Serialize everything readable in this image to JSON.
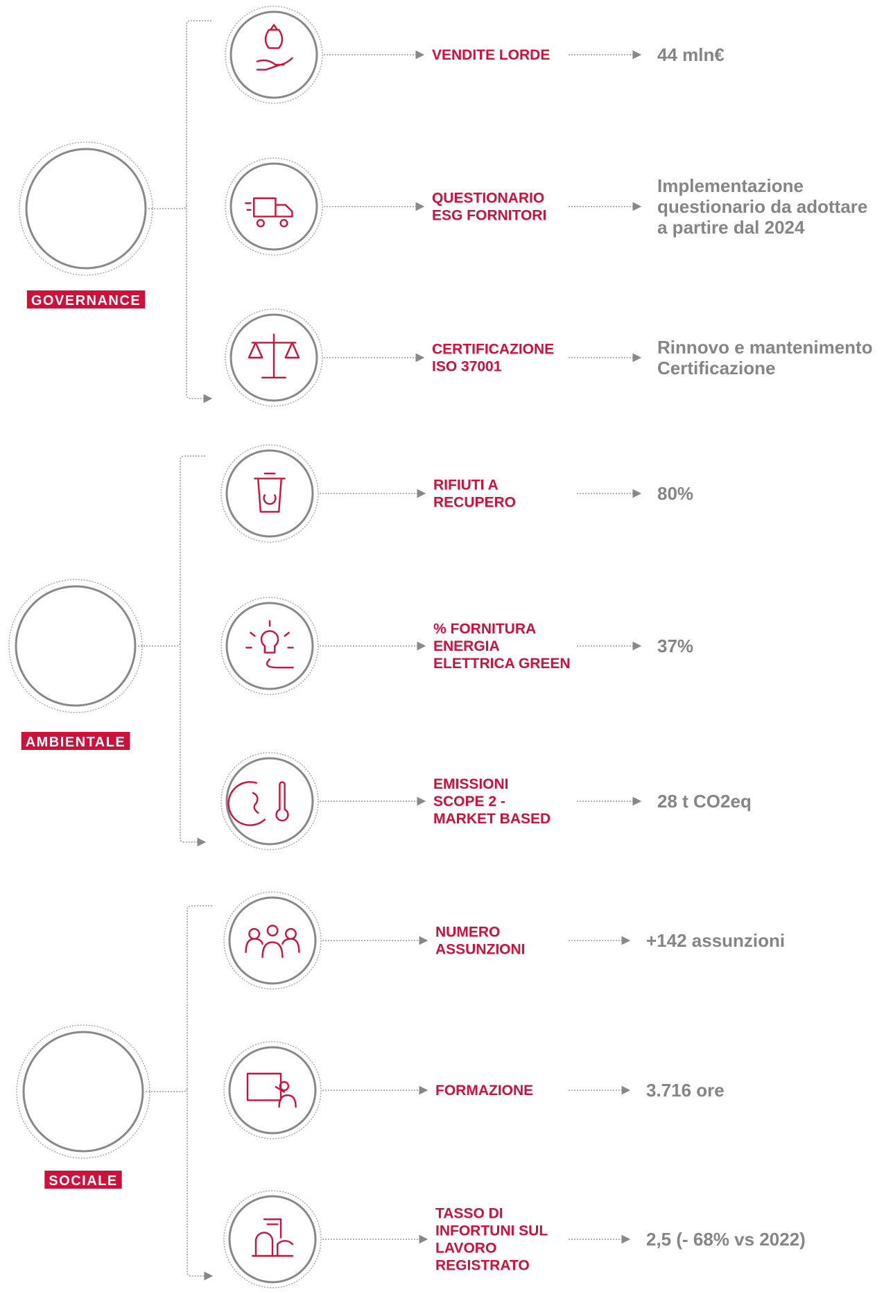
{
  "sections": [
    {
      "name": "GOVERNANCE",
      "items": [
        {
          "label": [
            "VENDITE LORDE"
          ],
          "value": [
            "44 mln€"
          ]
        },
        {
          "label": [
            "QUESTIONARIO",
            "ESG FORNITORI"
          ],
          "value": [
            "Implementazione",
            "questionario da adottare",
            "a partire dal 2024"
          ]
        },
        {
          "label": [
            "CERTIFICAZIONE",
            "ISO 37001"
          ],
          "value": [
            "Rinnovo e mantenimento",
            "Certificazione"
          ]
        }
      ]
    },
    {
      "name": "AMBIENTALE",
      "items": [
        {
          "label": [
            "RIFIUTI A",
            "RECUPERO"
          ],
          "value": [
            "80%"
          ]
        },
        {
          "label": [
            "% FORNITURA",
            "ENERGIA",
            "ELETTRICA GREEN"
          ],
          "value": [
            "37%"
          ]
        },
        {
          "label": [
            "EMISSIONI",
            "SCOPE 2 -",
            "MARKET BASED"
          ],
          "value": [
            "28 t CO2eq"
          ]
        }
      ]
    },
    {
      "name": "SOCIALE",
      "items": [
        {
          "label": [
            "NUMERO",
            "ASSUNZIONI"
          ],
          "value": [
            "+142 assunzioni"
          ]
        },
        {
          "label": [
            "FORMAZIONE"
          ],
          "value": [
            "3.716 ore"
          ]
        },
        {
          "label": [
            "TASSO DI",
            "INFORTUNI SUL",
            "LAVORO",
            "REGISTRATO"
          ],
          "value": [
            "2,5 (- 68% vs 2022)"
          ]
        }
      ]
    }
  ]
}
